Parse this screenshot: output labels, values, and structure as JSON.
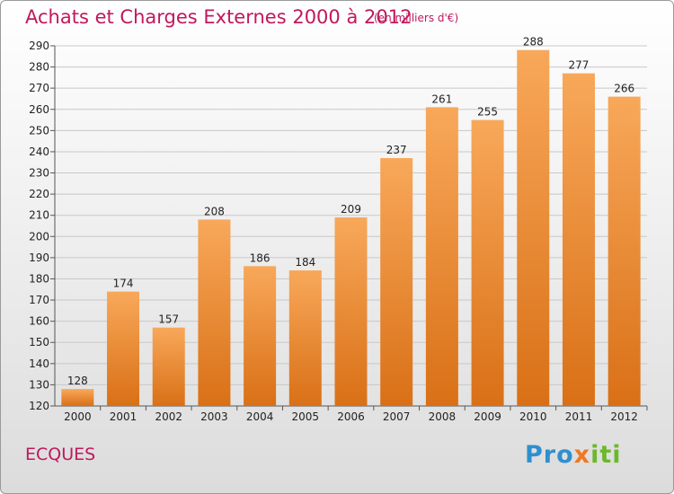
{
  "header": {
    "title": "Achats et Charges Externes 2000 à 2012",
    "subtitle": "(en milliers d'€)"
  },
  "footer": {
    "commune": "ECQUES",
    "logo": {
      "parts": [
        "Pro",
        "x",
        "iti"
      ],
      "colors": [
        "#2f8fd0",
        "#f07820",
        "#6cb82c"
      ]
    }
  },
  "colors": {
    "title": "#c0185d",
    "bar_light": "#f8a85a",
    "bar_dark": "#d97016",
    "grid": "#c8c8c8"
  },
  "chart_data": {
    "type": "bar",
    "title": "Achats et Charges Externes 2000 à 2012",
    "subtitle": "(en milliers d'€)",
    "categories": [
      "2000",
      "2001",
      "2002",
      "2003",
      "2004",
      "2005",
      "2006",
      "2007",
      "2008",
      "2009",
      "2010",
      "2011",
      "2012"
    ],
    "values": [
      128,
      174,
      157,
      208,
      186,
      184,
      209,
      237,
      261,
      255,
      288,
      277,
      266
    ],
    "ylim": [
      120,
      290
    ],
    "yticks": [
      120,
      130,
      140,
      150,
      160,
      170,
      180,
      190,
      200,
      210,
      220,
      230,
      240,
      250,
      260,
      270,
      280,
      290
    ],
    "grid": true,
    "xlabel": "",
    "ylabel": ""
  }
}
